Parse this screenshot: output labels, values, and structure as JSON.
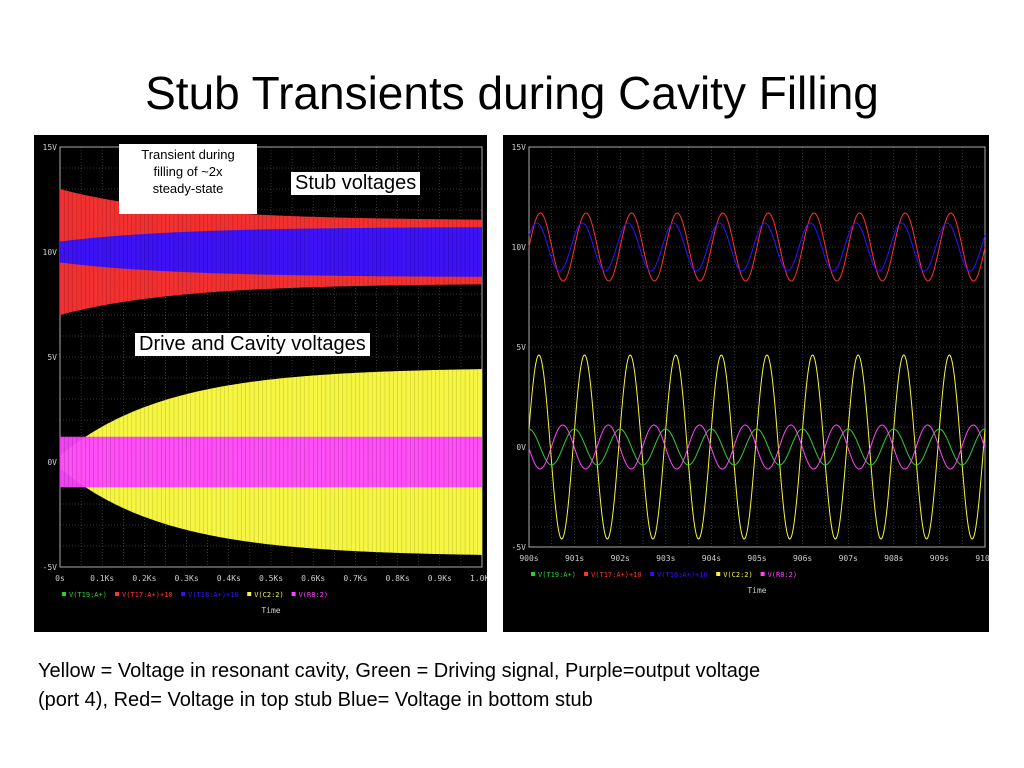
{
  "slide": {
    "title": "Stub Transients during Cavity Filling",
    "caption_line1": "Yellow = Voltage in resonant cavity, Green = Driving signal, Purple=output voltage",
    "caption_line2": "(port 4), Red= Voltage in top stub Blue= Voltage in bottom stub"
  },
  "annotations": {
    "callout_line1": "Transient during",
    "callout_line2": "filling of ~2x",
    "callout_line3": "steady-state",
    "stub_label": "Stub voltages",
    "drive_label": "Drive and Cavity voltages"
  },
  "colors": {
    "yellow": "#f5f542",
    "green": "#33cc33",
    "purple": "#ff44ff",
    "red": "#ff3333",
    "blue": "#3311ff",
    "grid": "#666666",
    "axis_text": "#cccccc"
  },
  "chart_data": [
    {
      "type": "area",
      "name": "full-transient",
      "x_ticks": [
        "0s",
        "0.1Ks",
        "0.2Ks",
        "0.3Ks",
        "0.4Ks",
        "0.5Ks",
        "0.6Ks",
        "0.7Ks",
        "0.8Ks",
        "0.9Ks",
        "1.0Ks"
      ],
      "y_ticks": [
        "15V",
        "10V",
        "5V",
        "0V",
        "-5V"
      ],
      "ylim": [
        -5,
        15
      ],
      "xlim": [
        0,
        1000
      ],
      "xlabel": "Time",
      "legend": [
        "V(T19:A+)",
        "V(T17:A+)+10",
        "V(T18:A+)+10",
        "V(C2:2)",
        "V(R8:2)"
      ],
      "envelopes": {
        "red_stub": {
          "center": 10,
          "initial_half_amplitude": 3.0,
          "steady_half_amplitude": 1.5
        },
        "blue_stub": {
          "center": 10,
          "initial_half_amplitude": 0.5,
          "steady_half_amplitude": 1.2
        },
        "yellow_cavity": {
          "center": 0,
          "initial_half_amplitude": 0.3,
          "steady_half_amplitude": 4.5
        },
        "magenta_output": {
          "center": 0,
          "initial_half_amplitude": 1.2,
          "steady_half_amplitude": 1.2
        }
      }
    },
    {
      "type": "line",
      "name": "zoomed-steady-state",
      "x_ticks": [
        "900s",
        "901s",
        "902s",
        "903s",
        "904s",
        "905s",
        "906s",
        "907s",
        "908s",
        "909s",
        "910s"
      ],
      "y_ticks": [
        "15V",
        "10V",
        "5V",
        "0V",
        "-5V"
      ],
      "ylim": [
        -5,
        15
      ],
      "xlim": [
        900,
        910
      ],
      "xlabel": "Time",
      "legend": [
        "V(T19:A+)",
        "V(T17:A+)+10",
        "V(T18:A+)+10",
        "V(C2:2)",
        "V(R8:2)"
      ],
      "cycles_visible": 10,
      "series": [
        {
          "color": "red",
          "center": 10,
          "amplitude": 1.7
        },
        {
          "color": "blue",
          "center": 10,
          "amplitude": 1.2
        },
        {
          "color": "yellow",
          "center": 0,
          "amplitude": 4.6
        },
        {
          "color": "green",
          "center": 0,
          "amplitude": 0.9
        },
        {
          "color": "purple",
          "center": 0,
          "amplitude": 1.1
        }
      ]
    }
  ]
}
